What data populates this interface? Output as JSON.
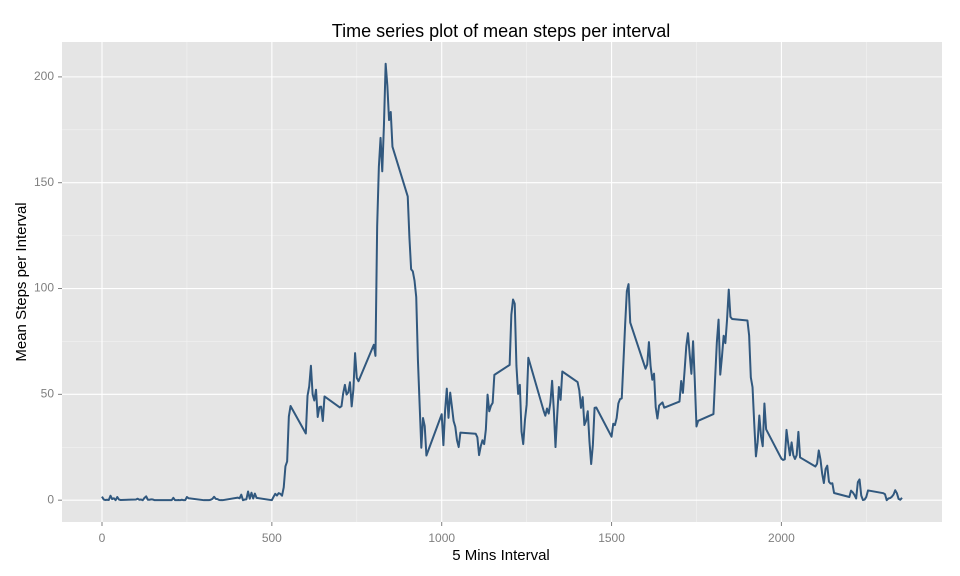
{
  "chart_data": {
    "type": "line",
    "title": "Time series plot of mean steps per interval",
    "x_label": "5 Mins Interval",
    "y_label": "Mean Steps per Interval",
    "xlim": [
      -117.75,
      2472.75
    ],
    "ylim": [
      -10.31,
      216.48
    ],
    "xticks": [
      0,
      500,
      1000,
      1500,
      2000
    ],
    "yticks": [
      0,
      50,
      100,
      150,
      200
    ],
    "grid": true,
    "minor_grid": true,
    "x": [
      0,
      5,
      10,
      15,
      20,
      25,
      30,
      35,
      40,
      45,
      50,
      55,
      100,
      105,
      110,
      115,
      120,
      125,
      130,
      135,
      140,
      145,
      150,
      155,
      200,
      205,
      210,
      215,
      220,
      225,
      230,
      235,
      240,
      245,
      250,
      255,
      300,
      305,
      310,
      315,
      320,
      325,
      330,
      335,
      340,
      345,
      350,
      355,
      400,
      405,
      410,
      415,
      420,
      425,
      430,
      435,
      440,
      445,
      450,
      455,
      500,
      505,
      510,
      515,
      520,
      525,
      530,
      535,
      540,
      545,
      550,
      555,
      600,
      605,
      610,
      615,
      620,
      625,
      630,
      635,
      640,
      645,
      650,
      655,
      700,
      705,
      710,
      715,
      720,
      725,
      730,
      735,
      740,
      745,
      750,
      755,
      800,
      805,
      810,
      815,
      820,
      825,
      830,
      835,
      840,
      845,
      850,
      855,
      900,
      905,
      910,
      915,
      920,
      925,
      930,
      935,
      940,
      945,
      950,
      955,
      1000,
      1005,
      1010,
      1015,
      1020,
      1025,
      1030,
      1035,
      1040,
      1045,
      1050,
      1055,
      1100,
      1105,
      1110,
      1115,
      1120,
      1125,
      1130,
      1135,
      1140,
      1145,
      1150,
      1155,
      1200,
      1205,
      1210,
      1215,
      1220,
      1225,
      1230,
      1235,
      1240,
      1245,
      1250,
      1255,
      1300,
      1305,
      1310,
      1315,
      1320,
      1325,
      1330,
      1335,
      1340,
      1345,
      1350,
      1355,
      1400,
      1405,
      1410,
      1415,
      1420,
      1425,
      1430,
      1435,
      1440,
      1445,
      1450,
      1455,
      1500,
      1505,
      1510,
      1515,
      1520,
      1525,
      1530,
      1535,
      1540,
      1545,
      1550,
      1555,
      1600,
      1605,
      1610,
      1615,
      1620,
      1625,
      1630,
      1635,
      1640,
      1645,
      1650,
      1655,
      1700,
      1705,
      1710,
      1715,
      1720,
      1725,
      1730,
      1735,
      1740,
      1745,
      1750,
      1755,
      1800,
      1805,
      1810,
      1815,
      1820,
      1825,
      1830,
      1835,
      1840,
      1845,
      1850,
      1855,
      1900,
      1905,
      1910,
      1915,
      1920,
      1925,
      1930,
      1935,
      1940,
      1945,
      1950,
      1955,
      2000,
      2005,
      2010,
      2015,
      2020,
      2025,
      2030,
      2035,
      2040,
      2045,
      2050,
      2055,
      2100,
      2105,
      2110,
      2115,
      2120,
      2125,
      2130,
      2135,
      2140,
      2145,
      2150,
      2155,
      2200,
      2205,
      2210,
      2215,
      2220,
      2225,
      2230,
      2235,
      2240,
      2245,
      2250,
      2255,
      2300,
      2305,
      2310,
      2315,
      2320,
      2325,
      2330,
      2335,
      2340,
      2345,
      2350,
      2355
    ],
    "series": [
      {
        "name": "mean steps",
        "color": "#31587e",
        "values": [
          1.7,
          0.3,
          0.1,
          0.2,
          0.1,
          2.1,
          0.5,
          0.9,
          0,
          1.5,
          0.3,
          0.1,
          0.3,
          0.7,
          0.2,
          0.3,
          0,
          1.1,
          1.8,
          0.2,
          0.2,
          0.4,
          0.3,
          0,
          0,
          0,
          1.1,
          0,
          0,
          0.1,
          0,
          0.2,
          0,
          0,
          1.5,
          0.9,
          0,
          0,
          0,
          0,
          0.2,
          0.6,
          1.6,
          0.6,
          0.5,
          0.1,
          0,
          0,
          1.2,
          0.9,
          2.6,
          0,
          0.3,
          0.4,
          4.1,
          0.7,
          3.5,
          0.8,
          3.1,
          1.1,
          0,
          1.6,
          3,
          2.2,
          3.3,
          3,
          2.1,
          6.1,
          16,
          18.3,
          39.5,
          44.5,
          31.5,
          49.3,
          53.8,
          63.5,
          50,
          47.1,
          52.2,
          39.3,
          44,
          44.2,
          37.4,
          49,
          43.8,
          44.4,
          50.5,
          54.5,
          49.9,
          51,
          55.7,
          44.3,
          52.3,
          69.5,
          57.8,
          56.2,
          73.4,
          68.2,
          129.4,
          157.5,
          171.2,
          155.4,
          177.3,
          206.2,
          195.9,
          179.6,
          183.4,
          167,
          143.5,
          124,
          109.1,
          108.1,
          103.7,
          96,
          66.2,
          45.2,
          24.8,
          38.8,
          35,
          21.1,
          40.6,
          26,
          42.4,
          52.7,
          38.9,
          50.8,
          44.3,
          37.4,
          34.7,
          28.3,
          25.1,
          31.9,
          31.4,
          29.7,
          21.3,
          25.5,
          28.3,
          26.5,
          33.4,
          49.9,
          42,
          44.6,
          46,
          59.2,
          63.9,
          87.6,
          94.8,
          92.8,
          63.4,
          50.2,
          54.5,
          32.4,
          26.5,
          37.7,
          45.1,
          67.3,
          42.3,
          39.9,
          43.3,
          40.9,
          46.2,
          56.4,
          42.8,
          25.1,
          40,
          53.5,
          47.4,
          60.8,
          55.8,
          51.9,
          43.6,
          48.7,
          35.5,
          37.5,
          42,
          27.7,
          17.1,
          26.1,
          43.6,
          43.8,
          30,
          36.1,
          35.5,
          38.8,
          45.7,
          47.8,
          48.1,
          65.3,
          82.9,
          98.7,
          102.1,
          83.9,
          62.1,
          64.1,
          74.7,
          63.2,
          56.9,
          59.8,
          43.9,
          38.6,
          44.7,
          45.5,
          46.2,
          43.7,
          46.6,
          56.3,
          50.7,
          61.2,
          72.7,
          78.9,
          68.9,
          59.7,
          75.1,
          56.5,
          34.8,
          37.5,
          40.7,
          58,
          74.7,
          85.3,
          59.3,
          67.8,
          77.7,
          74.2,
          85.3,
          99.5,
          86.6,
          85.6,
          84.9,
          77.8,
          58,
          53.4,
          36.3,
          20.7,
          27.4,
          40,
          30.2,
          25.5,
          45.7,
          33.5,
          19.6,
          19,
          19.3,
          33.2,
          26.8,
          21.2,
          27.3,
          21.3,
          19.5,
          21.3,
          32.3,
          20.2,
          15.9,
          17.2,
          23.5,
          19.2,
          12.5,
          8.1,
          14.7,
          16.3,
          8.7,
          7.8,
          8,
          3.4,
          1.5,
          4.5,
          3.7,
          2.5,
          0.8,
          8.5,
          9.8,
          2.2,
          0.1,
          0.3,
          1.6,
          4.6,
          3.3,
          2.8,
          0,
          0.8,
          1,
          1.6,
          2.6,
          4.7,
          3.3,
          0.6,
          0.2,
          1.1
        ]
      }
    ]
  }
}
